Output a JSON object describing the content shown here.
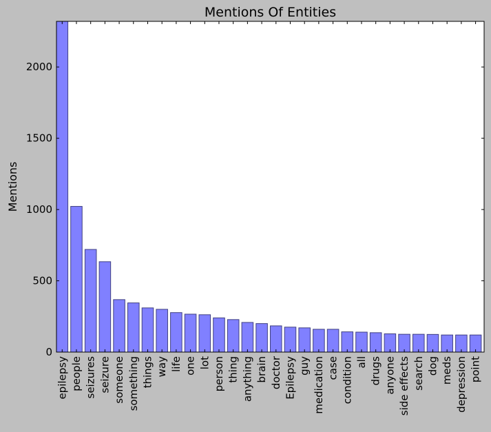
{
  "chart_data": {
    "type": "bar",
    "title": "Mentions Of Entities",
    "xlabel": "",
    "ylabel": "Mentions",
    "ylim": [
      0,
      2320
    ],
    "yticks": [
      0,
      500,
      1000,
      1500,
      2000
    ],
    "categories": [
      "epilepsy",
      "people",
      "seizures",
      "seizure",
      "someone",
      "something",
      "things",
      "way",
      "life",
      "one",
      "lot",
      "person",
      "thing",
      "anything",
      "brain",
      "doctor",
      "Epilepsy",
      "guy",
      "medication",
      "case",
      "condition",
      "all",
      "drugs",
      "anyone",
      "side effects",
      "search",
      "dog",
      "meds",
      "depression",
      "point"
    ],
    "values": [
      2320,
      1022,
      720,
      634,
      368,
      345,
      310,
      300,
      277,
      266,
      262,
      240,
      228,
      208,
      200,
      184,
      175,
      170,
      160,
      160,
      142,
      140,
      136,
      128,
      125,
      125,
      124,
      120,
      120,
      120
    ],
    "colors": {
      "bar_fill": "#8080ff",
      "bar_stroke": "#404080",
      "plot_bg": "#ffffff",
      "figure_bg": "#bfbfbf"
    },
    "grid": false,
    "legend": "none"
  }
}
